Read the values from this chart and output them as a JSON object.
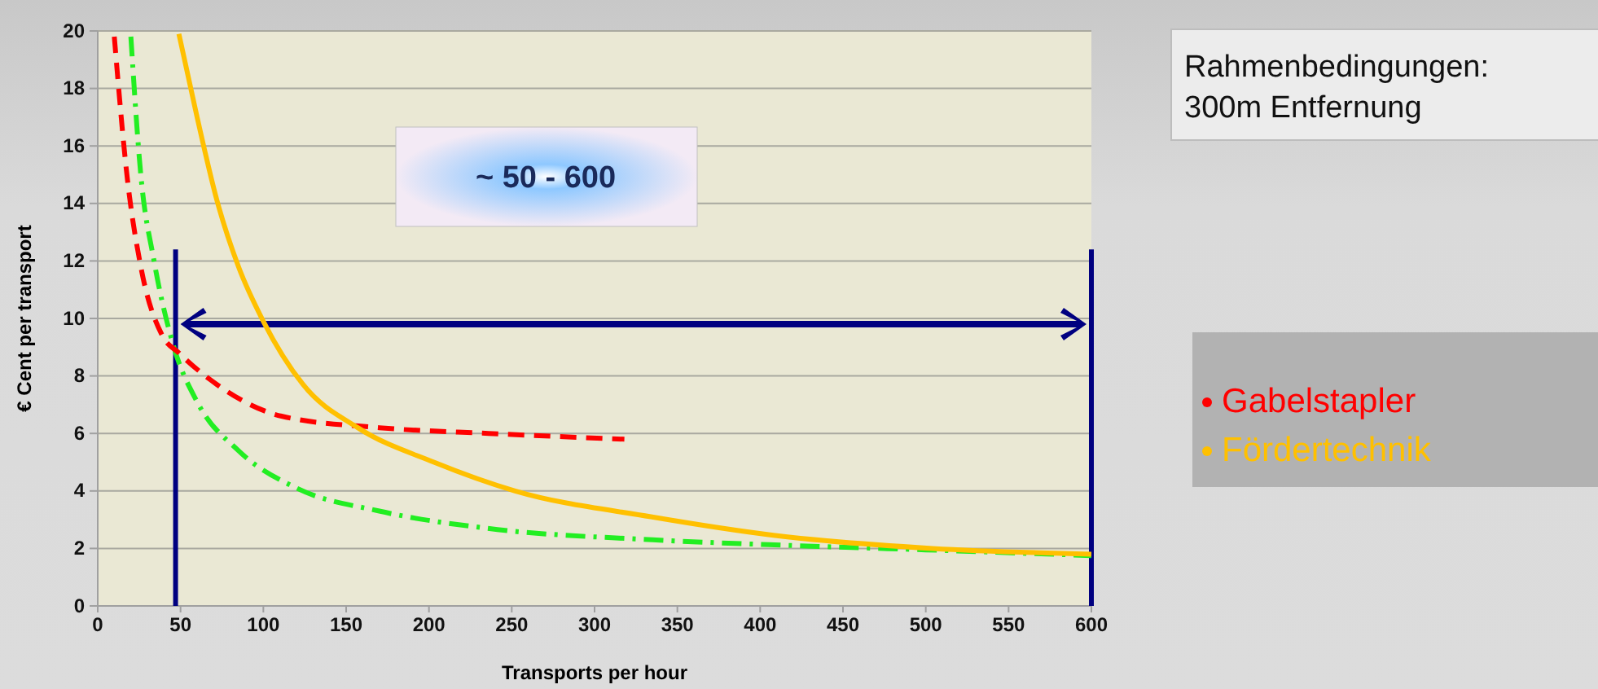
{
  "chart_data": {
    "type": "line",
    "xlabel": "Transports per hour",
    "ylabel": "€ Cent per transport",
    "xlim": [
      0,
      600
    ],
    "xticks": [
      0,
      50,
      100,
      150,
      200,
      250,
      300,
      350,
      400,
      450,
      500,
      550,
      600
    ],
    "ylim": [
      0,
      20
    ],
    "yticks": [
      0,
      2,
      4,
      6,
      8,
      10,
      12,
      14,
      16,
      18,
      20
    ],
    "grid": "y",
    "legend": "right",
    "marker": "none",
    "series": [
      {
        "color": "#22ee22",
        "line_style": "dashdot",
        "x": [
          20,
          26,
          34,
          46,
          60,
          85,
          120,
          170,
          235,
          335,
          420,
          500,
          600
        ],
        "values": [
          19.8,
          15,
          12,
          9,
          7.1,
          5.4,
          4.1,
          3.3,
          2.7,
          2.3,
          2.1,
          1.95,
          1.75
        ]
      },
      {
        "name": "Gabelstapler",
        "color": "#ff0000",
        "line_style": "dashed",
        "x": [
          10,
          18,
          26,
          39,
          49,
          72,
          111,
          170,
          236,
          318
        ],
        "values": [
          19.8,
          14.8,
          11.8,
          9.4,
          8.8,
          7.7,
          6.6,
          6.2,
          6,
          5.8
        ]
      },
      {
        "name": "Fördertechnik",
        "color": "#ffc000",
        "line_style": "solid",
        "x": [
          49,
          60,
          72,
          85,
          100,
          124,
          157,
          203,
          252,
          334,
          409,
          504,
          600
        ],
        "values": [
          19.9,
          17,
          14.1,
          11.8,
          9.9,
          7.7,
          6.2,
          5,
          4,
          3.1,
          2.45,
          2,
          1.8
        ]
      }
    ],
    "ref_lines": [
      {
        "axis": "x",
        "value": 47,
        "color": "#000080"
      },
      {
        "axis": "x",
        "value": 600,
        "color": "#000080"
      }
    ],
    "annotations": [
      "~ 50 - 600",
      "Rahmenbedingungen:\n300m Entfernung"
    ]
  }
}
